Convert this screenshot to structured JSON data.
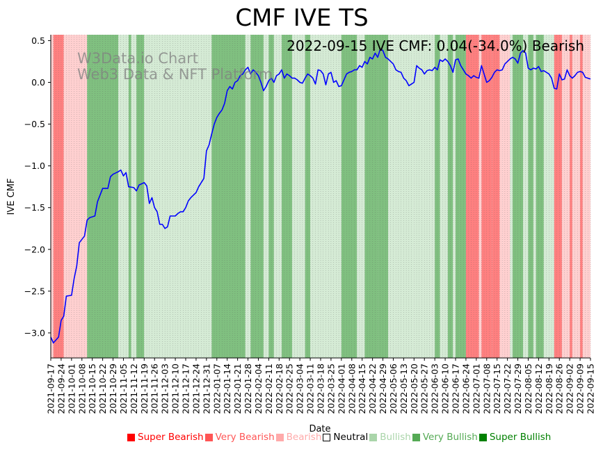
{
  "chart_data": {
    "type": "line",
    "title": "CMF IVE TS",
    "xlabel": "Date",
    "ylabel": "IVE CMF",
    "ylim": [
      -3.3,
      0.57
    ],
    "yticks": [
      "0.5",
      "0.0",
      "−0.5",
      "−1.0",
      "−1.5",
      "−2.0",
      "−2.5",
      "−3.0"
    ],
    "ytick_values": [
      0.5,
      0.0,
      -0.5,
      -1.0,
      -1.5,
      -2.0,
      -2.5,
      -3.0
    ],
    "xticks": [
      "2021-09-17",
      "2021-09-24",
      "2021-10-01",
      "2021-10-08",
      "2021-10-15",
      "2021-10-22",
      "2021-10-29",
      "2021-11-05",
      "2021-11-12",
      "2021-11-19",
      "2021-11-26",
      "2021-12-03",
      "2021-12-10",
      "2021-12-17",
      "2021-12-24",
      "2021-12-31",
      "2022-01-07",
      "2022-01-14",
      "2022-01-21",
      "2022-01-28",
      "2022-02-04",
      "2022-02-11",
      "2022-02-18",
      "2022-02-25",
      "2022-03-04",
      "2022-03-11",
      "2022-03-18",
      "2022-03-25",
      "2022-04-01",
      "2022-04-08",
      "2022-04-15",
      "2022-04-22",
      "2022-04-29",
      "2022-05-06",
      "2022-05-13",
      "2022-05-20",
      "2022-05-27",
      "2022-06-03",
      "2022-06-10",
      "2022-06-17",
      "2022-06-24",
      "2022-07-01",
      "2022-07-08",
      "2022-07-15",
      "2022-07-22",
      "2022-07-29",
      "2022-08-05",
      "2022-08-12",
      "2022-08-19",
      "2022-08-26",
      "2022-09-02",
      "2022-09-09",
      "2022-09-15"
    ],
    "annotation": "2022-09-15 IVE CMF: 0.04(-34.0%) Bearish",
    "series": [
      {
        "name": "IVE CMF",
        "color": "#0000ff",
        "points": [
          [
            0,
            -3.05
          ],
          [
            1,
            -3.12
          ],
          [
            3,
            -3.05
          ],
          [
            4,
            -2.85
          ],
          [
            5,
            -2.8
          ],
          [
            6,
            -2.56
          ],
          [
            8,
            -2.55
          ],
          [
            9,
            -2.35
          ],
          [
            10,
            -2.2
          ],
          [
            11,
            -1.92
          ],
          [
            13,
            -1.84
          ],
          [
            14,
            -1.65
          ],
          [
            15,
            -1.62
          ],
          [
            17,
            -1.6
          ],
          [
            18,
            -1.43
          ],
          [
            19,
            -1.35
          ],
          [
            20,
            -1.27
          ],
          [
            22,
            -1.27
          ],
          [
            23,
            -1.13
          ],
          [
            24,
            -1.1
          ],
          [
            26,
            -1.07
          ],
          [
            27,
            -1.05
          ],
          [
            28,
            -1.12
          ],
          [
            29,
            -1.08
          ],
          [
            30,
            -1.25
          ],
          [
            32,
            -1.26
          ],
          [
            33,
            -1.3
          ],
          [
            34,
            -1.23
          ],
          [
            36,
            -1.2
          ],
          [
            37,
            -1.24
          ],
          [
            38,
            -1.45
          ],
          [
            39,
            -1.38
          ],
          [
            40,
            -1.5
          ],
          [
            41,
            -1.55
          ],
          [
            42,
            -1.7
          ],
          [
            43,
            -1.7
          ],
          [
            44,
            -1.75
          ],
          [
            45,
            -1.73
          ],
          [
            46,
            -1.6
          ],
          [
            48,
            -1.6
          ],
          [
            49,
            -1.57
          ],
          [
            50,
            -1.55
          ],
          [
            51,
            -1.55
          ],
          [
            52,
            -1.5
          ],
          [
            53,
            -1.42
          ],
          [
            54,
            -1.38
          ],
          [
            55,
            -1.35
          ],
          [
            56,
            -1.32
          ],
          [
            57,
            -1.25
          ],
          [
            59,
            -1.15
          ],
          [
            60,
            -0.82
          ],
          [
            61,
            -0.75
          ],
          [
            62,
            -0.62
          ],
          [
            63,
            -0.5
          ],
          [
            64,
            -0.42
          ],
          [
            65,
            -0.37
          ],
          [
            66,
            -0.33
          ],
          [
            67,
            -0.25
          ],
          [
            68,
            -0.1
          ],
          [
            69,
            -0.05
          ],
          [
            70,
            -0.08
          ],
          [
            71,
            0.0
          ],
          [
            72,
            0.02
          ],
          [
            73,
            0.08
          ],
          [
            74,
            0.1
          ],
          [
            75,
            0.15
          ],
          [
            76,
            0.18
          ],
          [
            77,
            0.1
          ],
          [
            78,
            0.15
          ],
          [
            79,
            0.12
          ],
          [
            80,
            0.08
          ],
          [
            81,
            0.0
          ],
          [
            82,
            -0.1
          ],
          [
            83,
            -0.05
          ],
          [
            84,
            0.02
          ],
          [
            85,
            0.05
          ],
          [
            86,
            0.0
          ],
          [
            87,
            0.08
          ],
          [
            88,
            0.1
          ],
          [
            89,
            0.15
          ],
          [
            90,
            0.05
          ],
          [
            91,
            0.1
          ],
          [
            92,
            0.08
          ],
          [
            93,
            0.05
          ],
          [
            94,
            0.05
          ],
          [
            95,
            0.03
          ],
          [
            96,
            0.0
          ],
          [
            97,
            -0.01
          ],
          [
            98,
            0.05
          ],
          [
            99,
            0.1
          ],
          [
            100,
            0.08
          ],
          [
            101,
            0.05
          ],
          [
            102,
            -0.02
          ],
          [
            103,
            0.15
          ],
          [
            104,
            0.14
          ],
          [
            105,
            0.1
          ],
          [
            106,
            -0.03
          ],
          [
            107,
            0.1
          ],
          [
            108,
            0.12
          ],
          [
            109,
            0.0
          ],
          [
            110,
            0.02
          ],
          [
            111,
            -0.05
          ],
          [
            112,
            -0.04
          ],
          [
            113,
            0.03
          ],
          [
            114,
            0.1
          ],
          [
            115,
            0.12
          ],
          [
            116,
            0.13
          ],
          [
            117,
            0.15
          ],
          [
            118,
            0.15
          ],
          [
            119,
            0.2
          ],
          [
            120,
            0.18
          ],
          [
            121,
            0.25
          ],
          [
            122,
            0.22
          ],
          [
            123,
            0.3
          ],
          [
            124,
            0.28
          ],
          [
            125,
            0.35
          ],
          [
            126,
            0.3
          ],
          [
            127,
            0.4
          ],
          [
            128,
            0.38
          ],
          [
            129,
            0.3
          ],
          [
            130,
            0.28
          ],
          [
            131,
            0.25
          ],
          [
            132,
            0.22
          ],
          [
            133,
            0.15
          ],
          [
            134,
            0.13
          ],
          [
            135,
            0.12
          ],
          [
            136,
            0.05
          ],
          [
            137,
            0.02
          ],
          [
            138,
            -0.04
          ],
          [
            139,
            -0.02
          ],
          [
            140,
            0.0
          ],
          [
            141,
            0.2
          ],
          [
            142,
            0.17
          ],
          [
            143,
            0.15
          ],
          [
            144,
            0.1
          ],
          [
            145,
            0.14
          ],
          [
            146,
            0.15
          ],
          [
            147,
            0.14
          ],
          [
            148,
            0.18
          ],
          [
            149,
            0.15
          ],
          [
            150,
            0.27
          ],
          [
            151,
            0.25
          ],
          [
            152,
            0.28
          ],
          [
            153,
            0.25
          ],
          [
            154,
            0.2
          ],
          [
            155,
            0.12
          ],
          [
            156,
            0.27
          ],
          [
            157,
            0.28
          ],
          [
            158,
            0.2
          ],
          [
            159,
            0.15
          ],
          [
            160,
            0.1
          ],
          [
            161,
            0.08
          ],
          [
            162,
            0.05
          ],
          [
            163,
            0.08
          ],
          [
            164,
            0.06
          ],
          [
            165,
            0.05
          ],
          [
            166,
            0.2
          ],
          [
            167,
            0.1
          ],
          [
            168,
            0.0
          ],
          [
            169,
            0.02
          ],
          [
            170,
            0.06
          ],
          [
            171,
            0.12
          ],
          [
            172,
            0.15
          ],
          [
            173,
            0.14
          ],
          [
            174,
            0.15
          ],
          [
            175,
            0.22
          ],
          [
            176,
            0.25
          ],
          [
            177,
            0.28
          ],
          [
            178,
            0.3
          ],
          [
            179,
            0.28
          ],
          [
            180,
            0.23
          ],
          [
            181,
            0.35
          ],
          [
            182,
            0.38
          ],
          [
            183,
            0.35
          ],
          [
            184,
            0.17
          ],
          [
            185,
            0.15
          ],
          [
            186,
            0.17
          ],
          [
            187,
            0.16
          ],
          [
            188,
            0.19
          ],
          [
            189,
            0.13
          ],
          [
            190,
            0.14
          ],
          [
            191,
            0.12
          ],
          [
            192,
            0.1
          ],
          [
            193,
            0.05
          ],
          [
            194,
            -0.07
          ],
          [
            195,
            -0.08
          ],
          [
            196,
            0.1
          ],
          [
            197,
            0.03
          ],
          [
            198,
            0.04
          ],
          [
            199,
            0.15
          ],
          [
            200,
            0.08
          ],
          [
            201,
            0.05
          ],
          [
            202,
            0.08
          ],
          [
            203,
            0.12
          ],
          [
            204,
            0.13
          ],
          [
            205,
            0.12
          ],
          [
            206,
            0.06
          ],
          [
            207,
            0.05
          ],
          [
            208,
            0.04
          ]
        ]
      }
    ],
    "x_range": [
      0,
      208
    ],
    "state_bands": [
      {
        "from": 0,
        "to": 1,
        "state": "Bearish"
      },
      {
        "from": 1,
        "to": 5,
        "state": "Very Bearish"
      },
      {
        "from": 5,
        "to": 14,
        "state": "Bearish"
      },
      {
        "from": 14,
        "to": 26,
        "state": "Very Bullish"
      },
      {
        "from": 26,
        "to": 30,
        "state": "Bullish"
      },
      {
        "from": 30,
        "to": 31,
        "state": "Very Bullish"
      },
      {
        "from": 31,
        "to": 33,
        "state": "Bullish"
      },
      {
        "from": 33,
        "to": 36,
        "state": "Very Bullish"
      },
      {
        "from": 36,
        "to": 48,
        "state": "Bullish"
      },
      {
        "from": 48,
        "to": 62,
        "state": "Bullish"
      },
      {
        "from": 62,
        "to": 75,
        "state": "Very Bullish"
      },
      {
        "from": 75,
        "to": 77,
        "state": "Bullish"
      },
      {
        "from": 77,
        "to": 82,
        "state": "Very Bullish"
      },
      {
        "from": 82,
        "to": 84,
        "state": "Bullish"
      },
      {
        "from": 84,
        "to": 86,
        "state": "Very Bullish"
      },
      {
        "from": 86,
        "to": 89,
        "state": "Bullish"
      },
      {
        "from": 89,
        "to": 93,
        "state": "Very Bullish"
      },
      {
        "from": 93,
        "to": 98,
        "state": "Bullish"
      },
      {
        "from": 98,
        "to": 100,
        "state": "Very Bullish"
      },
      {
        "from": 100,
        "to": 106,
        "state": "Bullish"
      },
      {
        "from": 106,
        "to": 112,
        "state": "Bullish"
      },
      {
        "from": 112,
        "to": 118,
        "state": "Very Bullish"
      },
      {
        "from": 118,
        "to": 121,
        "state": "Bullish"
      },
      {
        "from": 121,
        "to": 126,
        "state": "Very Bullish"
      },
      {
        "from": 126,
        "to": 130,
        "state": "Very Bullish"
      },
      {
        "from": 130,
        "to": 133,
        "state": "Bullish"
      },
      {
        "from": 133,
        "to": 140,
        "state": "Bullish"
      },
      {
        "from": 140,
        "to": 148,
        "state": "Bullish"
      },
      {
        "from": 148,
        "to": 150,
        "state": "Very Bullish"
      },
      {
        "from": 150,
        "to": 153,
        "state": "Bullish"
      },
      {
        "from": 153,
        "to": 155,
        "state": "Very Bullish"
      },
      {
        "from": 155,
        "to": 156,
        "state": "Bullish"
      },
      {
        "from": 156,
        "to": 160,
        "state": "Very Bullish"
      },
      {
        "from": 160,
        "to": 165,
        "state": "Very Bearish"
      },
      {
        "from": 165,
        "to": 166,
        "state": "Bearish"
      },
      {
        "from": 166,
        "to": 170,
        "state": "Very Bearish"
      },
      {
        "from": 170,
        "to": 173,
        "state": "Very Bearish"
      },
      {
        "from": 173,
        "to": 174,
        "state": "Bearish"
      },
      {
        "from": 174,
        "to": 177,
        "state": "Bearish"
      },
      {
        "from": 177,
        "to": 178,
        "state": "Bullish"
      },
      {
        "from": 178,
        "to": 182,
        "state": "Very Bullish"
      },
      {
        "from": 182,
        "to": 184,
        "state": "Bullish"
      },
      {
        "from": 184,
        "to": 186,
        "state": "Very Bullish"
      },
      {
        "from": 186,
        "to": 187,
        "state": "Bullish"
      },
      {
        "from": 187,
        "to": 190,
        "state": "Very Bullish"
      },
      {
        "from": 190,
        "to": 194,
        "state": "Bullish"
      },
      {
        "from": 194,
        "to": 197,
        "state": "Very Bearish"
      },
      {
        "from": 197,
        "to": 200,
        "state": "Bearish"
      },
      {
        "from": 200,
        "to": 201,
        "state": "Very Bearish"
      },
      {
        "from": 201,
        "to": 204,
        "state": "Bearish"
      },
      {
        "from": 204,
        "to": 205,
        "state": "Very Bearish"
      },
      {
        "from": 205,
        "to": 208,
        "state": "Bearish"
      }
    ],
    "state_colors": {
      "Super Bearish": "#ff0000",
      "Very Bearish": "#ff8080",
      "Bearish": "#ffd0d0",
      "Neutral": "#ffffff",
      "Bullish": "#d5ebd5",
      "Very Bullish": "#80c080",
      "Super Bullish": "#008000"
    }
  },
  "watermark": {
    "line1": "W3Data.io Chart",
    "line2": "Web3 Data & NFT Platform"
  },
  "legend": [
    {
      "label": "Super Bearish",
      "color": "#ff0000",
      "text_color": "#ff0000"
    },
    {
      "label": "Very Bearish",
      "color": "#ff5555",
      "text_color": "#ff5555"
    },
    {
      "label": "Bearish",
      "color": "#ffaaaa",
      "text_color": "#ffaaaa"
    },
    {
      "label": "Neutral",
      "color": "#ffffff",
      "text_color": "#000000"
    },
    {
      "label": "Bullish",
      "color": "#aad5aa",
      "text_color": "#aad5aa"
    },
    {
      "label": "Very Bullish",
      "color": "#55aa55",
      "text_color": "#55aa55"
    },
    {
      "label": "Super Bullish",
      "color": "#008000",
      "text_color": "#008000"
    }
  ]
}
